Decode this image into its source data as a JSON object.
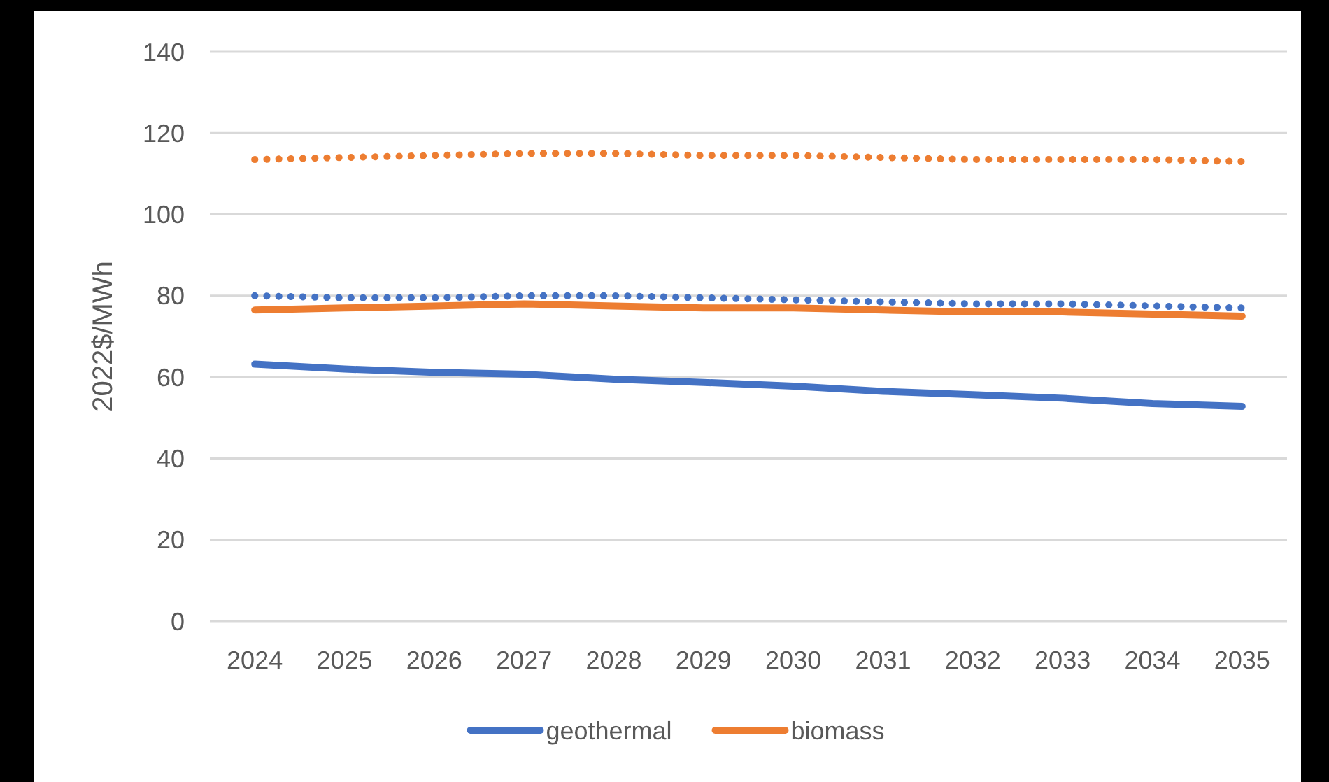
{
  "chart_data": {
    "type": "line",
    "ylabel": "2022$/MWh",
    "categories": [
      "2024",
      "2025",
      "2026",
      "2027",
      "2028",
      "2029",
      "2030",
      "2031",
      "2032",
      "2033",
      "2034",
      "2035"
    ],
    "series": [
      {
        "name": "geothermal",
        "color": "#4472c4",
        "line_style": "solid",
        "values": [
          63.2,
          62,
          61.2,
          60.7,
          59.5,
          58.7,
          57.8,
          56.5,
          55.7,
          54.8,
          53.5,
          52.8
        ]
      },
      {
        "name": "biomass",
        "color": "#ed7d31",
        "line_style": "solid",
        "values": [
          76.5,
          77,
          77.5,
          78,
          77.5,
          77,
          77,
          76.5,
          76,
          76,
          75.5,
          75
        ]
      },
      {
        "color": "#4472c4",
        "line_style": "dotted",
        "values": [
          80,
          79.5,
          79.5,
          80,
          80,
          79.5,
          79,
          78.5,
          78,
          78,
          77.5,
          77
        ]
      },
      {
        "color": "#ed7d31",
        "line_style": "dotted",
        "values": [
          113.5,
          114,
          114.5,
          115,
          115,
          114.5,
          114.5,
          114,
          113.5,
          113.5,
          113.5,
          113
        ]
      }
    ],
    "ylim": [
      0,
      140
    ],
    "yticks": [
      0,
      20,
      40,
      60,
      80,
      100,
      120,
      140
    ],
    "grid": "y",
    "legend": "bottom",
    "marker": "none"
  }
}
